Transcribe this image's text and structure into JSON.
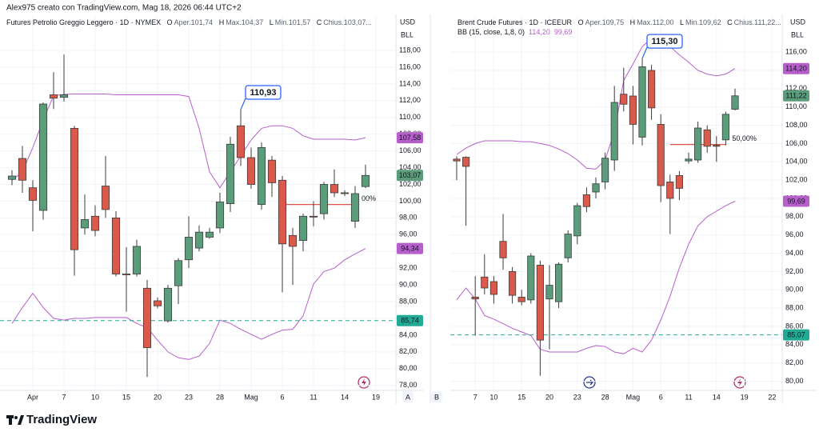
{
  "header": {
    "text": "Alex975 creato con TradingView.com, Mag 18, 2026 06:44 UTC+2"
  },
  "footer": {
    "logo": "TradingView"
  },
  "axis_buttons": [
    "A",
    "B"
  ],
  "chart_data": [
    {
      "type": "candlestick",
      "title": "Futures Petrolio Greggio Leggero · 1D · NYMEX",
      "ohlc_legend": [
        {
          "key": "O",
          "text": "Aper.101,74"
        },
        {
          "key": "H",
          "text": "Max.104,37"
        },
        {
          "key": "L",
          "text": "Min.101,57"
        },
        {
          "key": "C",
          "text": "Chius.103,07..."
        }
      ],
      "currency": "USD",
      "unit": "BLL",
      "up_color": "#5b9c7b",
      "down_color": "#d9594a",
      "band_color": "#b65fcb",
      "grid": true,
      "ylim": [
        77.4,
        120.2
      ],
      "yticks": [
        {
          "value": 78,
          "label": "78,00"
        },
        {
          "value": 80,
          "label": "80,00"
        },
        {
          "value": 82,
          "label": "82,00"
        },
        {
          "value": 84,
          "label": "84,00"
        },
        {
          "value": 86,
          "label": "86,00"
        },
        {
          "value": 88,
          "label": "88,00"
        },
        {
          "value": 90,
          "label": "90,00"
        },
        {
          "value": 92,
          "label": "92,00"
        },
        {
          "value": 94,
          "label": "94,00"
        },
        {
          "value": 96,
          "label": "96,00"
        },
        {
          "value": 98,
          "label": "98,00"
        },
        {
          "value": 100,
          "label": "100,00"
        },
        {
          "value": 102,
          "label": "102,00"
        },
        {
          "value": 104,
          "label": "104,00"
        },
        {
          "value": 106,
          "label": "106,00"
        },
        {
          "value": 108,
          "label": "108,00"
        },
        {
          "value": 110,
          "label": "110,00"
        },
        {
          "value": 112,
          "label": "112,00"
        },
        {
          "value": 114,
          "label": "114,00"
        },
        {
          "value": 116,
          "label": "116,00"
        },
        {
          "value": 118,
          "label": "118,00"
        }
      ],
      "categories": [
        null,
        null,
        "Apr",
        null,
        null,
        "7",
        null,
        null,
        "10",
        null,
        null,
        "15",
        null,
        null,
        "20",
        null,
        null,
        "23",
        null,
        null,
        "28",
        null,
        null,
        "Mag",
        null,
        null,
        "6",
        null,
        null,
        "11",
        null,
        null,
        "14",
        null,
        null,
        "19"
      ],
      "open": [
        102.6,
        105.1,
        101.6,
        98.9,
        112.7,
        112.4,
        108.7,
        96.8,
        98.2,
        101.8,
        98.0,
        91.3,
        91.3,
        89.6,
        88.1,
        85.7,
        89.9,
        93.0,
        94.4,
        95.7,
        96.8,
        99.7,
        109.0,
        105.2,
        99.6,
        104.9,
        102.5,
        95.9,
        95.3,
        98.2,
        98.5,
        102.0,
        101.0,
        97.6,
        101.74,
        null
      ],
      "high": [
        103.7,
        106.6,
        102.5,
        111.8,
        115.4,
        117.5,
        109.0,
        100.8,
        99.5,
        105.4,
        98.8,
        94.5,
        95.4,
        90.6,
        88.5,
        90.0,
        93.2,
        98.2,
        97.1,
        96.8,
        101.0,
        107.7,
        110.93,
        106.4,
        107.0,
        105.4,
        103.0,
        96.8,
        98.5,
        100.0,
        102.3,
        103.8,
        101.3,
        101.8,
        104.37,
        null
      ],
      "low": [
        101.9,
        101.0,
        96.4,
        97.8,
        111.0,
        111.9,
        91.1,
        96.0,
        95.8,
        98.0,
        91.0,
        86.8,
        91.0,
        79.0,
        87.2,
        85.5,
        87.7,
        92.0,
        94.0,
        95.5,
        96.2,
        98.7,
        104.2,
        101.5,
        99.0,
        100.5,
        89.1,
        90.0,
        94.0,
        97.0,
        97.8,
        100.5,
        100.6,
        96.8,
        101.57,
        null
      ],
      "close": [
        103.0,
        102.5,
        100.1,
        111.6,
        112.3,
        112.7,
        94.2,
        97.8,
        96.5,
        99.0,
        91.3,
        91.2,
        94.6,
        82.5,
        87.5,
        89.6,
        92.9,
        95.7,
        96.3,
        96.3,
        99.9,
        106.8,
        105.2,
        102.0,
        106.4,
        102.2,
        94.9,
        94.6,
        98.2,
        98.1,
        102.0,
        101.0,
        100.9,
        100.9,
        103.07,
        null
      ],
      "close_tag": "103,07",
      "bands": [
        {
          "values": [
            102.5,
            103.5,
            106.4,
            109.7,
            112.6,
            112.75,
            112.8,
            112.8,
            112.8,
            112.8,
            112.7,
            112.7,
            112.7,
            112.7,
            112.7,
            112.7,
            112.7,
            112.5,
            108.7,
            103.5,
            101.6,
            103.5,
            105.4,
            107.3,
            108.7,
            109.0,
            109.0,
            108.7,
            107.8,
            107.4,
            107.4,
            107.4,
            107.4,
            107.3,
            107.58,
            null
          ],
          "tag": "107,58"
        },
        {
          "values": [
            85.4,
            87.3,
            89.0,
            87.3,
            86.0,
            85.8,
            86.0,
            86.0,
            86.1,
            86.1,
            86.1,
            86.1,
            85.4,
            84.9,
            83.4,
            82.0,
            81.3,
            81.1,
            81.5,
            83.0,
            85.8,
            85.4,
            84.7,
            84.1,
            83.5,
            84.1,
            84.6,
            84.7,
            86.3,
            90.1,
            91.6,
            92.0,
            93.0,
            93.7,
            94.34,
            null
          ],
          "tag": "94,34"
        }
      ],
      "hlines": [
        {
          "value": 85.74,
          "label": "85,74",
          "color": "#22ab94"
        }
      ],
      "level": {
        "values": [
          null,
          null,
          null,
          null,
          null,
          null,
          null,
          null,
          null,
          null,
          null,
          null,
          null,
          null,
          null,
          null,
          null,
          null,
          null,
          null,
          null,
          null,
          null,
          null,
          null,
          null,
          99.6,
          99.6,
          99.6,
          99.6,
          99.6,
          99.6,
          99.6,
          99.6,
          null,
          null
        ],
        "label": "00%",
        "color": "#e0534a"
      },
      "callout": {
        "value": 110.93,
        "label": "110,93"
      }
    },
    {
      "type": "candlestick",
      "title": "Brent Crude Futures · 1D · ICEEUR",
      "ohlc_legend": [
        {
          "key": "O",
          "text": "Aper.109,75"
        },
        {
          "key": "H",
          "text": "Max.112,00"
        },
        {
          "key": "L",
          "text": "Min.109,62"
        },
        {
          "key": "C",
          "text": "Chius.111,22..."
        }
      ],
      "indicator": "BB (15, close, 1,8, 0)",
      "currency": "USD",
      "unit": "BLL",
      "up_color": "#5b9c7b",
      "down_color": "#d9594a",
      "band_color": "#b65fcb",
      "grid": true,
      "ylim": [
        79.0,
        118.2
      ],
      "yticks": [
        {
          "value": 80,
          "label": "80,00"
        },
        {
          "value": 82,
          "label": "82,00"
        },
        {
          "value": 84,
          "label": "84,00"
        },
        {
          "value": 86,
          "label": "86,00"
        },
        {
          "value": 88,
          "label": "88,00"
        },
        {
          "value": 90,
          "label": "90,00"
        },
        {
          "value": 92,
          "label": "92,00"
        },
        {
          "value": 94,
          "label": "94,00"
        },
        {
          "value": 96,
          "label": "96,00"
        },
        {
          "value": 98,
          "label": "98,00"
        },
        {
          "value": 100,
          "label": "100,00"
        },
        {
          "value": 102,
          "label": "102,00"
        },
        {
          "value": 104,
          "label": "104,00"
        },
        {
          "value": 106,
          "label": "106,00"
        },
        {
          "value": 108,
          "label": "108,00"
        },
        {
          "value": 110,
          "label": "110,00"
        },
        {
          "value": 112,
          "label": "112,00"
        },
        {
          "value": 114,
          "label": "114,00"
        },
        {
          "value": 116,
          "label": "116,00"
        }
      ],
      "categories": [
        null,
        null,
        "7",
        null,
        "10",
        null,
        null,
        "15",
        null,
        null,
        "20",
        null,
        null,
        "23",
        null,
        null,
        "28",
        null,
        null,
        "Mag",
        null,
        null,
        "6",
        null,
        null,
        "11",
        null,
        null,
        "14",
        null,
        null,
        "19",
        null,
        null,
        "22"
      ],
      "open": [
        104.3,
        104.5,
        89.2,
        91.4,
        90.9,
        95.3,
        92.0,
        89.2,
        88.9,
        92.7,
        89.0,
        88.7,
        93.5,
        95.9,
        100.4,
        100.7,
        101.8,
        104.2,
        111.4,
        111.2,
        106.7,
        114.0,
        108.1,
        101.8,
        102.5,
        104.1,
        104.2,
        107.5,
        105.8,
        106.4,
        109.75,
        null,
        null,
        null,
        null
      ],
      "high": [
        104.6,
        104.6,
        91.5,
        93.9,
        91.5,
        98.3,
        92.5,
        90.0,
        94.0,
        93.2,
        92.7,
        93.0,
        96.5,
        99.5,
        101.2,
        102.3,
        105.0,
        112.3,
        114.3,
        112.3,
        115.3,
        114.6,
        109.2,
        102.6,
        103.0,
        105.0,
        108.4,
        108.0,
        106.8,
        109.5,
        112.0,
        null,
        null,
        null,
        null
      ],
      "low": [
        102.0,
        97.0,
        85.0,
        89.5,
        88.5,
        92.2,
        88.5,
        88.3,
        88.5,
        80.6,
        83.5,
        88.0,
        93.0,
        95.0,
        98.5,
        100.0,
        101.0,
        103.0,
        109.5,
        105.9,
        105.8,
        108.6,
        99.6,
        96.1,
        99.8,
        103.8,
        103.9,
        105.0,
        104.0,
        105.8,
        109.62,
        null,
        null,
        null,
        null
      ],
      "close": [
        104.1,
        103.5,
        89.0,
        90.2,
        89.5,
        93.5,
        89.4,
        88.7,
        93.7,
        84.5,
        90.5,
        92.8,
        96.1,
        99.2,
        99.1,
        101.6,
        104.4,
        110.5,
        110.3,
        108.1,
        114.4,
        109.9,
        101.4,
        100.0,
        101.1,
        104.3,
        107.7,
        105.7,
        105.7,
        109.2,
        111.22,
        null,
        null,
        null,
        null
      ],
      "close_tag": "111,22",
      "bands": [
        {
          "values": [
            104.8,
            105.5,
            106.0,
            106.3,
            106.3,
            106.3,
            106.3,
            106.2,
            106.2,
            106.0,
            105.8,
            105.4,
            104.9,
            104.2,
            103.3,
            103.2,
            104.2,
            107.3,
            112.9,
            114.7,
            116.6,
            117.5,
            117.3,
            116.6,
            115.7,
            114.9,
            114.0,
            113.6,
            113.4,
            113.6,
            114.2,
            null,
            null,
            null,
            null
          ],
          "tag": "114,20"
        },
        {
          "values": [
            88.9,
            90.2,
            89.0,
            87.2,
            86.8,
            86.3,
            85.8,
            85.4,
            85.0,
            83.5,
            83.2,
            83.2,
            83.2,
            83.2,
            83.6,
            83.9,
            83.8,
            83.2,
            83.0,
            83.6,
            83.2,
            84.5,
            86.7,
            89.3,
            92.4,
            95.0,
            97.0,
            98.0,
            98.6,
            99.2,
            99.69,
            null,
            null,
            null,
            null
          ],
          "tag": "99,69"
        }
      ],
      "hlines": [
        {
          "value": 85.07,
          "label": "85,07",
          "color": "#22ab94"
        }
      ],
      "level": {
        "values": [
          null,
          null,
          null,
          null,
          null,
          null,
          null,
          null,
          null,
          null,
          null,
          null,
          null,
          null,
          null,
          null,
          null,
          null,
          null,
          null,
          null,
          null,
          null,
          105.9,
          105.9,
          105.9,
          105.9,
          105.9,
          105.9,
          105.9,
          null,
          null,
          null,
          null,
          null
        ],
        "label": "50,00%",
        "color": "#e0534a"
      },
      "callout": {
        "value": 115.3,
        "label": "115,30"
      }
    }
  ]
}
